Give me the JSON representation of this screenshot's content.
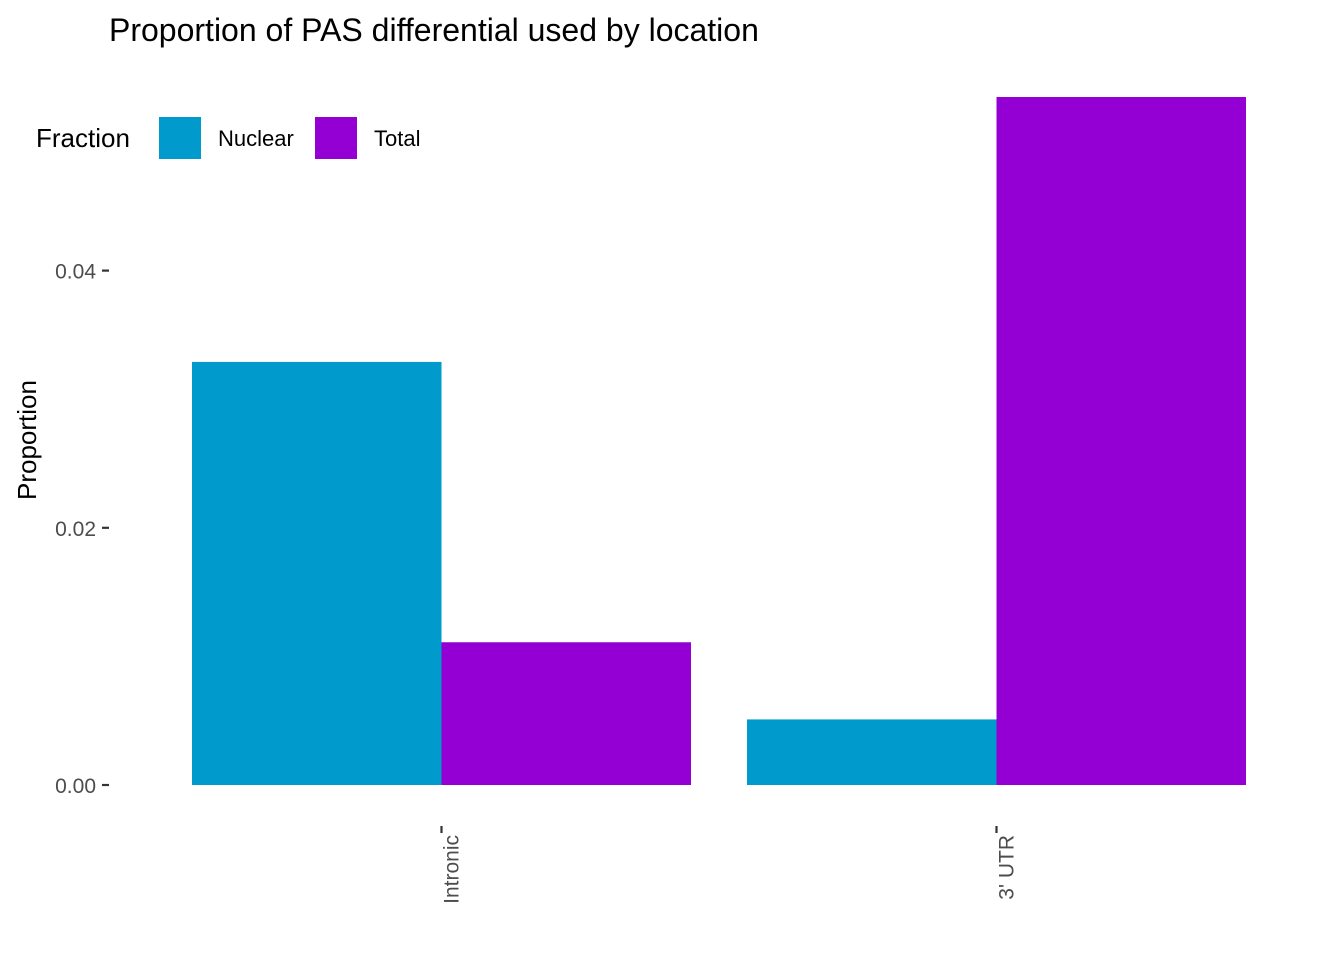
{
  "chart_data": {
    "type": "bar",
    "title": "Proportion of PAS differential used by location",
    "xlabel": "",
    "ylabel": "Proportion",
    "categories": [
      "Intronic",
      "3' UTR"
    ],
    "series": [
      {
        "name": "Nuclear",
        "color": "#009ACD",
        "values": [
          0.0329,
          0.0051
        ]
      },
      {
        "name": "Total",
        "color": "#9400D3",
        "values": [
          0.0111,
          0.0535
        ]
      }
    ],
    "ylim": [
      0,
      0.0535
    ],
    "y_ticks": [
      "0.00",
      "0.02",
      "0.04"
    ],
    "grid": false,
    "legend": {
      "title": "Fraction",
      "placement": "top-left"
    },
    "x_tick_label_rotation": "vertical"
  }
}
